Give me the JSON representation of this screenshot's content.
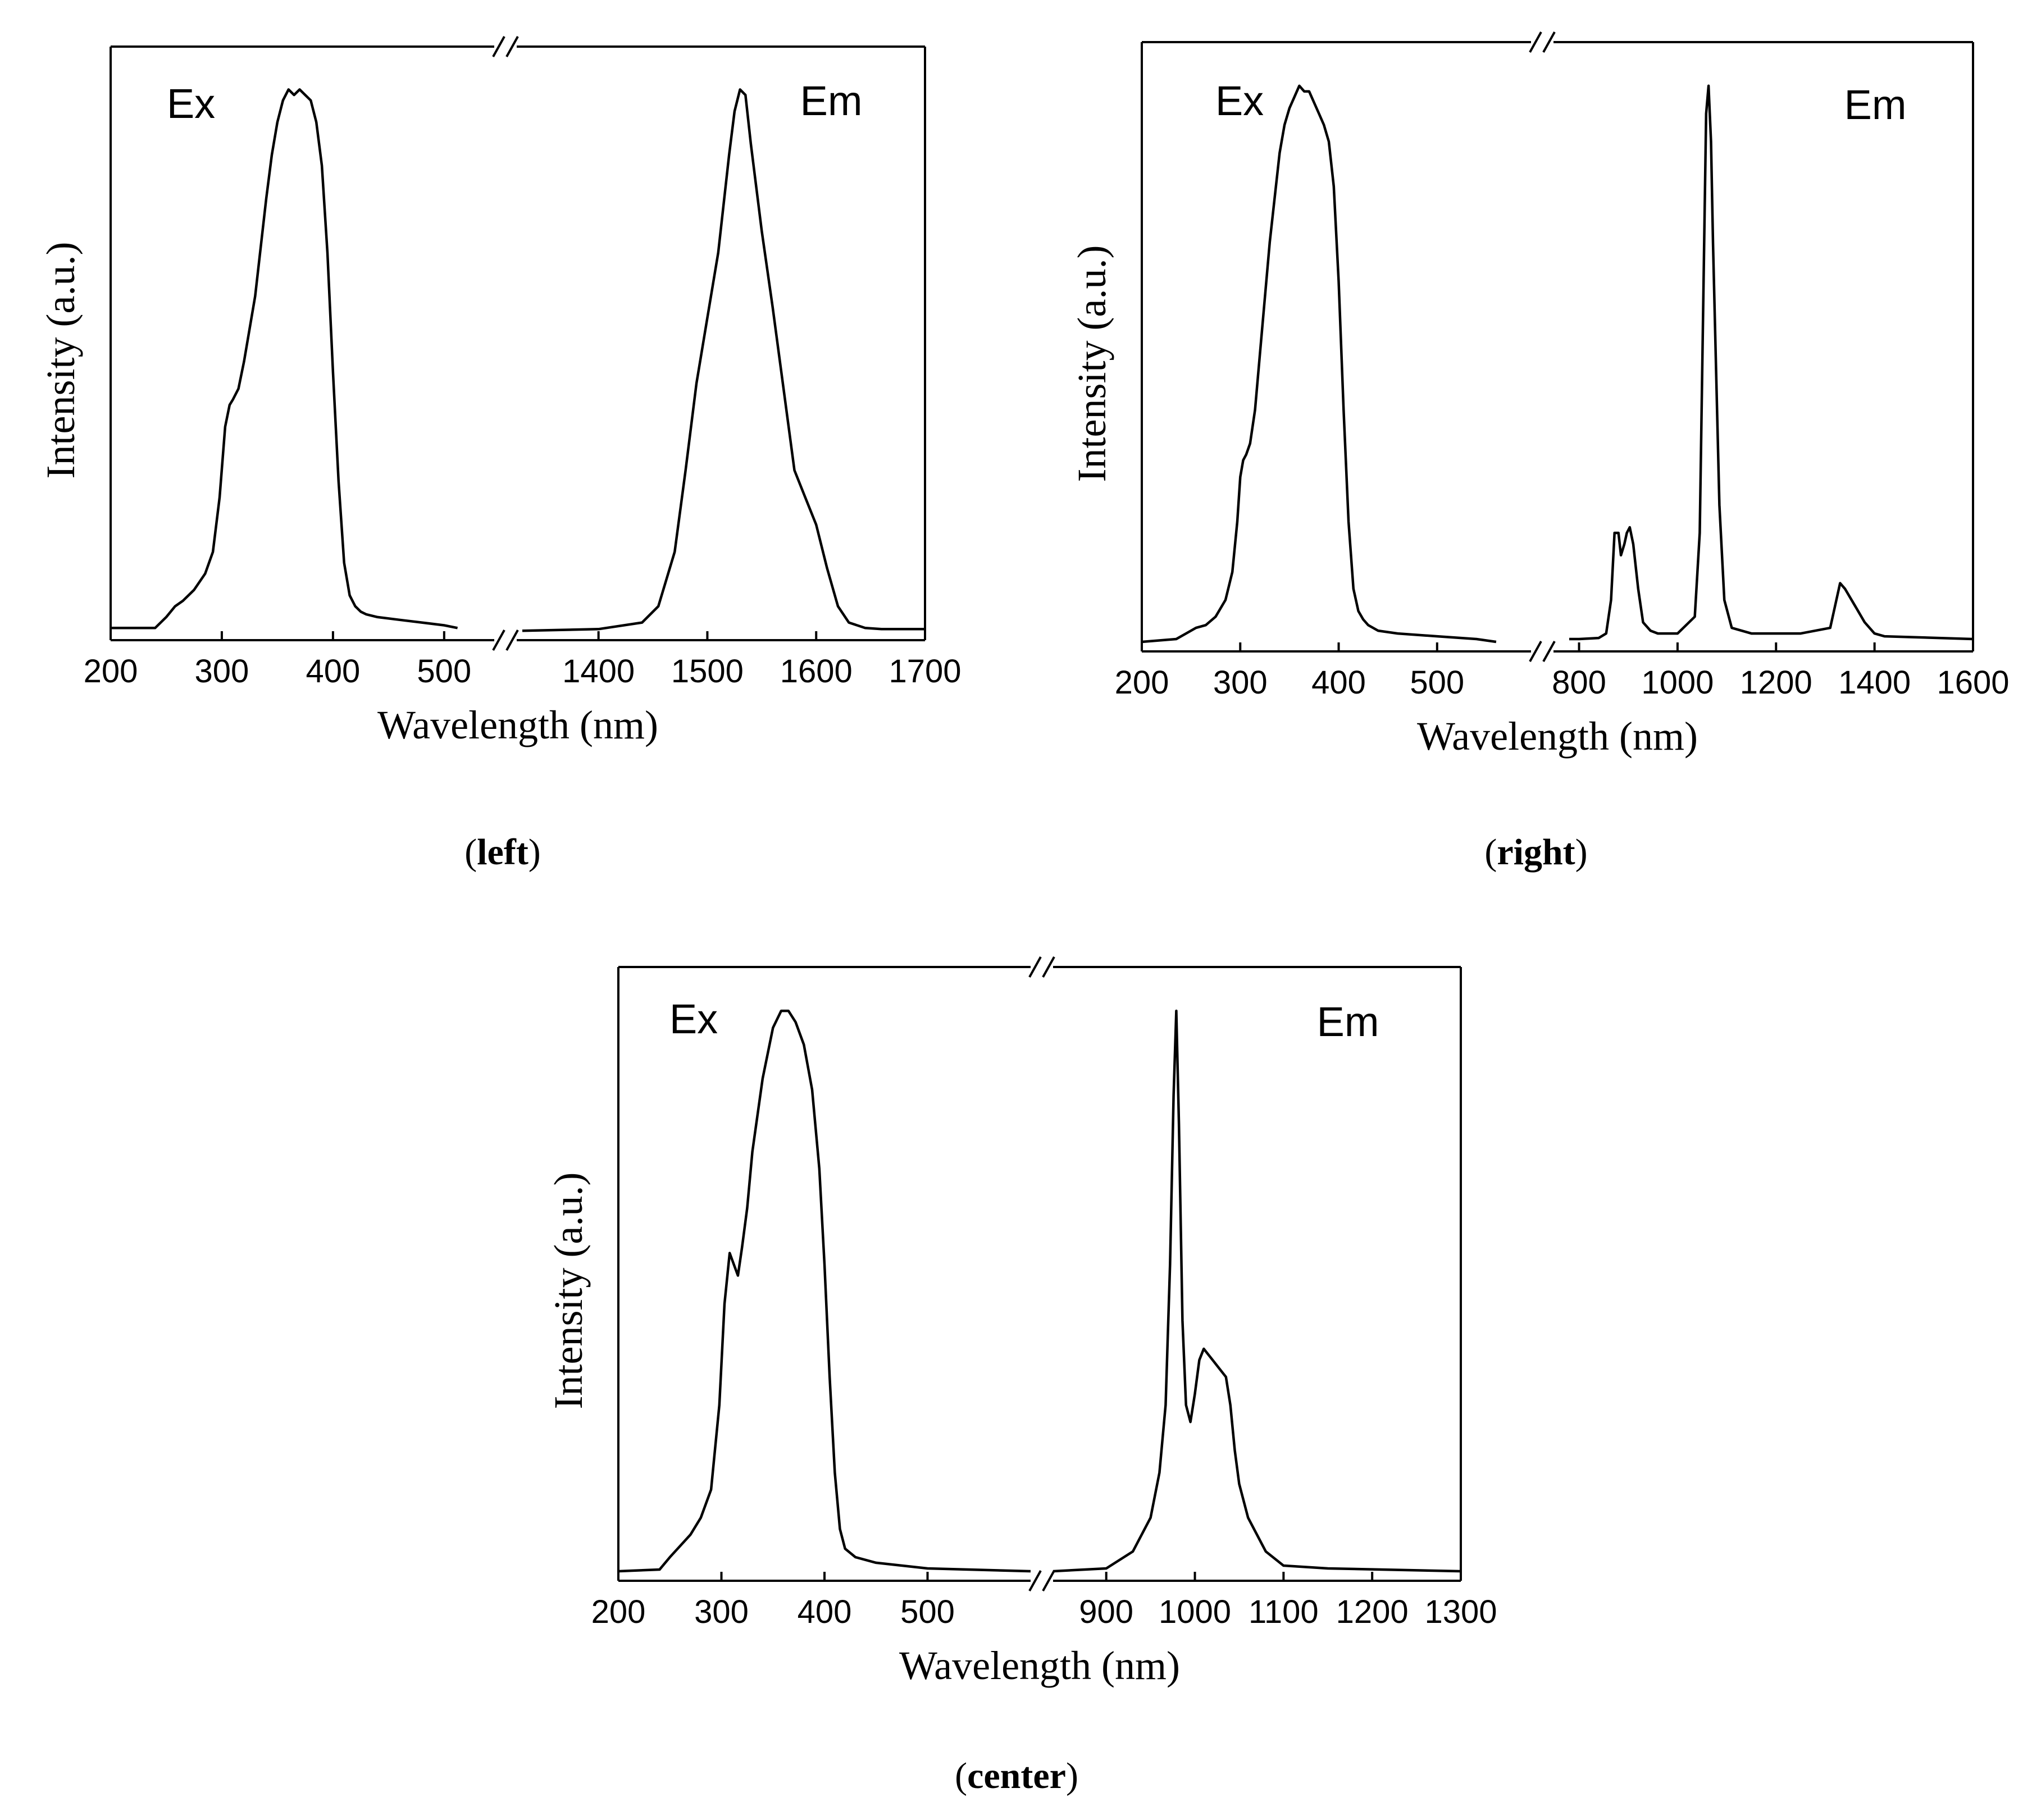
{
  "figure_title": "",
  "chart_data": [
    {
      "id": "left",
      "type": "line",
      "caption": "left",
      "title": "",
      "xlabel": "Wavelength (nm)",
      "ylabel": "Intensity (a.u.)",
      "broken_x_axis": true,
      "segments": [
        {
          "xlim": [
            200,
            540
          ],
          "ticks": [
            200,
            300,
            400,
            500
          ],
          "tick_labels": [
            "200",
            "300",
            "400",
            "500"
          ]
        },
        {
          "xlim": [
            1330,
            1700
          ],
          "ticks": [
            1400,
            1500,
            1600,
            1700
          ],
          "tick_labels": [
            "1400",
            "1500",
            "1600",
            "1700"
          ]
        }
      ],
      "ylim": [
        0,
        1.05
      ],
      "series": [
        {
          "name": "Ex",
          "segment": 0,
          "x": [
            200,
            240,
            250,
            258,
            265,
            275,
            285,
            292,
            298,
            303,
            307,
            310,
            315,
            320,
            330,
            340,
            345,
            350,
            355,
            360,
            365,
            370,
            375,
            380,
            385,
            390,
            395,
            400,
            405,
            410,
            415,
            420,
            425,
            430,
            440,
            460,
            480,
            500,
            512
          ],
          "y": [
            0.01,
            0.01,
            0.03,
            0.05,
            0.06,
            0.08,
            0.11,
            0.15,
            0.25,
            0.38,
            0.42,
            0.43,
            0.45,
            0.5,
            0.62,
            0.8,
            0.88,
            0.94,
            0.98,
            1.0,
            0.99,
            1.0,
            0.99,
            0.98,
            0.94,
            0.86,
            0.7,
            0.48,
            0.28,
            0.13,
            0.07,
            0.05,
            0.04,
            0.035,
            0.03,
            0.025,
            0.02,
            0.015,
            0.01
          ]
        },
        {
          "name": "Em",
          "segment": 1,
          "x": [
            1330,
            1400,
            1440,
            1455,
            1470,
            1480,
            1490,
            1500,
            1510,
            1520,
            1525,
            1530,
            1535,
            1540,
            1550,
            1560,
            1570,
            1580,
            1590,
            1600,
            1610,
            1620,
            1630,
            1645,
            1660,
            1700
          ],
          "y": [
            0.005,
            0.008,
            0.02,
            0.05,
            0.15,
            0.3,
            0.46,
            0.58,
            0.7,
            0.88,
            0.96,
            1.0,
            0.99,
            0.9,
            0.74,
            0.6,
            0.45,
            0.3,
            0.25,
            0.2,
            0.12,
            0.05,
            0.02,
            0.01,
            0.008,
            0.008
          ]
        }
      ]
    },
    {
      "id": "right",
      "type": "line",
      "caption": "right",
      "title": "",
      "xlabel": "Wavelength (nm)",
      "ylabel": "Intensity (a.u.)",
      "broken_x_axis": true,
      "segments": [
        {
          "xlim": [
            200,
            580
          ],
          "ticks": [
            200,
            300,
            400,
            500
          ],
          "tick_labels": [
            "200",
            "300",
            "400",
            "500"
          ]
        },
        {
          "xlim": [
            780,
            1600
          ],
          "ticks": [
            800,
            1000,
            1200,
            1400,
            1600
          ],
          "tick_labels": [
            "800",
            "1000",
            "1200",
            "1400",
            "1600"
          ]
        }
      ],
      "ylim": [
        0,
        1.05
      ],
      "series": [
        {
          "name": "Ex",
          "segment": 0,
          "x": [
            200,
            235,
            245,
            255,
            265,
            275,
            285,
            292,
            297,
            300,
            303,
            306,
            310,
            315,
            320,
            330,
            340,
            345,
            350,
            355,
            360,
            365,
            370,
            375,
            380,
            385,
            390,
            395,
            400,
            405,
            410,
            415,
            420,
            425,
            430,
            440,
            460,
            500,
            540,
            560
          ],
          "y": [
            0.005,
            0.01,
            0.02,
            0.03,
            0.035,
            0.05,
            0.08,
            0.13,
            0.22,
            0.3,
            0.33,
            0.34,
            0.36,
            0.42,
            0.52,
            0.72,
            0.88,
            0.93,
            0.96,
            0.98,
            1.0,
            0.99,
            0.99,
            0.97,
            0.95,
            0.93,
            0.9,
            0.82,
            0.65,
            0.42,
            0.22,
            0.1,
            0.06,
            0.045,
            0.035,
            0.025,
            0.02,
            0.015,
            0.01,
            0.005
          ]
        },
        {
          "name": "Em",
          "segment": 1,
          "x": [
            780,
            800,
            840,
            855,
            865,
            872,
            880,
            885,
            892,
            897,
            903,
            910,
            920,
            930,
            945,
            960,
            1000,
            1035,
            1045,
            1052,
            1058,
            1063,
            1068,
            1072,
            1078,
            1085,
            1095,
            1110,
            1150,
            1250,
            1310,
            1320,
            1330,
            1340,
            1360,
            1380,
            1400,
            1420,
            1600
          ],
          "y": [
            0.01,
            0.01,
            0.012,
            0.02,
            0.08,
            0.2,
            0.2,
            0.16,
            0.18,
            0.2,
            0.21,
            0.18,
            0.1,
            0.04,
            0.025,
            0.02,
            0.02,
            0.05,
            0.2,
            0.6,
            0.95,
            1.0,
            0.9,
            0.72,
            0.5,
            0.25,
            0.08,
            0.03,
            0.02,
            0.02,
            0.03,
            0.07,
            0.11,
            0.1,
            0.07,
            0.04,
            0.02,
            0.015,
            0.01
          ]
        }
      ]
    },
    {
      "id": "center",
      "type": "line",
      "caption": "center",
      "title": "",
      "xlabel": "Wavelength (nm)",
      "ylabel": "Intensity (a.u.)",
      "broken_x_axis": true,
      "segments": [
        {
          "xlim": [
            200,
            600
          ],
          "ticks": [
            200,
            300,
            400,
            500
          ],
          "tick_labels": [
            "200",
            "300",
            "400",
            "500"
          ]
        },
        {
          "xlim": [
            840,
            1300
          ],
          "ticks": [
            900,
            1000,
            1100,
            1200,
            1300
          ],
          "tick_labels": [
            "900",
            "1000",
            "1100",
            "1200",
            "1300"
          ]
        }
      ],
      "ylim": [
        0,
        1.05
      ],
      "series": [
        {
          "name": "Ex",
          "segment": 0,
          "x": [
            200,
            240,
            250,
            260,
            270,
            280,
            290,
            298,
            303,
            308,
            312,
            316,
            320,
            325,
            330,
            340,
            350,
            358,
            365,
            372,
            380,
            388,
            395,
            400,
            405,
            410,
            415,
            420,
            430,
            450,
            500,
            600
          ],
          "y": [
            0.005,
            0.008,
            0.03,
            0.05,
            0.07,
            0.1,
            0.15,
            0.3,
            0.48,
            0.57,
            0.55,
            0.53,
            0.58,
            0.65,
            0.75,
            0.88,
            0.97,
            1.0,
            1.0,
            0.98,
            0.94,
            0.86,
            0.72,
            0.55,
            0.35,
            0.18,
            0.08,
            0.045,
            0.03,
            0.02,
            0.01,
            0.005
          ]
        },
        {
          "name": "Em",
          "segment": 1,
          "x": [
            840,
            900,
            930,
            950,
            960,
            967,
            972,
            976,
            979,
            982,
            986,
            990,
            995,
            1000,
            1005,
            1010,
            1020,
            1030,
            1035,
            1040,
            1045,
            1050,
            1060,
            1080,
            1100,
            1150,
            1300
          ],
          "y": [
            0.005,
            0.01,
            0.04,
            0.1,
            0.18,
            0.3,
            0.55,
            0.85,
            1.0,
            0.8,
            0.45,
            0.3,
            0.27,
            0.32,
            0.38,
            0.4,
            0.38,
            0.36,
            0.35,
            0.3,
            0.22,
            0.16,
            0.1,
            0.04,
            0.015,
            0.01,
            0.005
          ]
        }
      ]
    }
  ]
}
